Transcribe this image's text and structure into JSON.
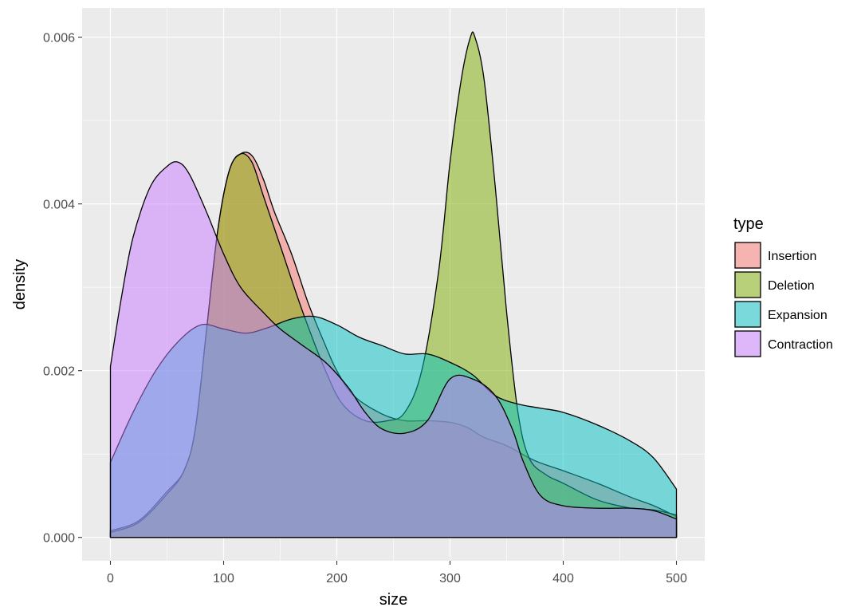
{
  "chart_data": {
    "type": "area",
    "title": "",
    "xlabel": "size",
    "ylabel": "density",
    "xlim": [
      -25,
      525
    ],
    "ylim": [
      -0.00028,
      0.00635
    ],
    "x_ticks": [
      0,
      100,
      200,
      300,
      400,
      500
    ],
    "x_tick_labels": [
      "0",
      "100",
      "200",
      "300",
      "400",
      "500"
    ],
    "y_ticks": [
      0,
      0.002,
      0.004,
      0.006
    ],
    "y_tick_labels": [
      "0.000",
      "0.002",
      "0.004",
      "0.006"
    ],
    "grid": true,
    "legend_title": "type",
    "legend_position": "right",
    "background": "#ebebeb",
    "series": [
      {
        "name": "Insertion",
        "color": "#f8766d",
        "points": [
          [
            0,
            8e-05
          ],
          [
            25,
            0.0002
          ],
          [
            50,
            0.00055
          ],
          [
            65,
            0.0008
          ],
          [
            75,
            0.0013
          ],
          [
            85,
            0.0025
          ],
          [
            95,
            0.0037
          ],
          [
            105,
            0.0044
          ],
          [
            115,
            0.0046
          ],
          [
            125,
            0.00458
          ],
          [
            135,
            0.0043
          ],
          [
            145,
            0.0039
          ],
          [
            160,
            0.0034
          ],
          [
            175,
            0.0028
          ],
          [
            190,
            0.0023
          ],
          [
            200,
            0.002
          ],
          [
            215,
            0.0017
          ],
          [
            240,
            0.00148
          ],
          [
            260,
            0.0014
          ],
          [
            280,
            0.0014
          ],
          [
            300,
            0.00138
          ],
          [
            315,
            0.00132
          ],
          [
            330,
            0.0012
          ],
          [
            350,
            0.0011
          ],
          [
            375,
            0.00092
          ],
          [
            400,
            0.0008
          ],
          [
            430,
            0.00065
          ],
          [
            460,
            0.00048
          ],
          [
            480,
            0.00038
          ],
          [
            500,
            0.00025
          ]
        ]
      },
      {
        "name": "Deletion",
        "color": "#7cae00",
        "points": [
          [
            0,
            6e-05
          ],
          [
            25,
            0.00018
          ],
          [
            50,
            0.00052
          ],
          [
            65,
            0.0008
          ],
          [
            75,
            0.0013
          ],
          [
            85,
            0.0025
          ],
          [
            95,
            0.0037
          ],
          [
            105,
            0.0044
          ],
          [
            115,
            0.0046
          ],
          [
            125,
            0.0045
          ],
          [
            135,
            0.0041
          ],
          [
            150,
            0.0035
          ],
          [
            170,
            0.0027
          ],
          [
            190,
            0.002
          ],
          [
            205,
            0.0016
          ],
          [
            225,
            0.0014
          ],
          [
            245,
            0.0014
          ],
          [
            260,
            0.0015
          ],
          [
            275,
            0.002
          ],
          [
            290,
            0.0032
          ],
          [
            300,
            0.0045
          ],
          [
            310,
            0.0055
          ],
          [
            318,
            0.006
          ],
          [
            322,
            0.006
          ],
          [
            330,
            0.0055
          ],
          [
            340,
            0.0042
          ],
          [
            350,
            0.0027
          ],
          [
            360,
            0.0015
          ],
          [
            370,
            0.00095
          ],
          [
            385,
            0.00075
          ],
          [
            400,
            0.00065
          ],
          [
            430,
            0.00045
          ],
          [
            460,
            0.00035
          ],
          [
            480,
            0.00033
          ],
          [
            500,
            0.00027
          ]
        ]
      },
      {
        "name": "Expansion",
        "color": "#00bfc4",
        "points": [
          [
            0,
            0.0009
          ],
          [
            20,
            0.0015
          ],
          [
            40,
            0.002
          ],
          [
            60,
            0.00235
          ],
          [
            80,
            0.00255
          ],
          [
            100,
            0.0025
          ],
          [
            120,
            0.00245
          ],
          [
            140,
            0.00252
          ],
          [
            160,
            0.00262
          ],
          [
            180,
            0.00265
          ],
          [
            200,
            0.00255
          ],
          [
            220,
            0.0024
          ],
          [
            240,
            0.0023
          ],
          [
            260,
            0.0022
          ],
          [
            280,
            0.0022
          ],
          [
            300,
            0.0021
          ],
          [
            320,
            0.00195
          ],
          [
            340,
            0.0017
          ],
          [
            360,
            0.0016
          ],
          [
            380,
            0.00155
          ],
          [
            400,
            0.0015
          ],
          [
            430,
            0.00135
          ],
          [
            460,
            0.00115
          ],
          [
            480,
            0.00095
          ],
          [
            500,
            0.00058
          ]
        ]
      },
      {
        "name": "Contraction",
        "color": "#c77cff",
        "points": [
          [
            0,
            0.00205
          ],
          [
            10,
            0.0029
          ],
          [
            20,
            0.0036
          ],
          [
            35,
            0.0042
          ],
          [
            50,
            0.00445
          ],
          [
            60,
            0.0045
          ],
          [
            70,
            0.00435
          ],
          [
            85,
            0.0039
          ],
          [
            100,
            0.0034
          ],
          [
            115,
            0.003
          ],
          [
            135,
            0.0027
          ],
          [
            150,
            0.0025
          ],
          [
            170,
            0.0023
          ],
          [
            190,
            0.0021
          ],
          [
            210,
            0.0018
          ],
          [
            225,
            0.0015
          ],
          [
            240,
            0.0013
          ],
          [
            260,
            0.00125
          ],
          [
            280,
            0.0014
          ],
          [
            300,
            0.0019
          ],
          [
            320,
            0.0019
          ],
          [
            340,
            0.0017
          ],
          [
            355,
            0.0013
          ],
          [
            365,
            0.0009
          ],
          [
            380,
            0.0005
          ],
          [
            400,
            0.00038
          ],
          [
            430,
            0.00035
          ],
          [
            460,
            0.00035
          ],
          [
            480,
            0.00032
          ],
          [
            500,
            0.00022
          ]
        ]
      }
    ]
  }
}
